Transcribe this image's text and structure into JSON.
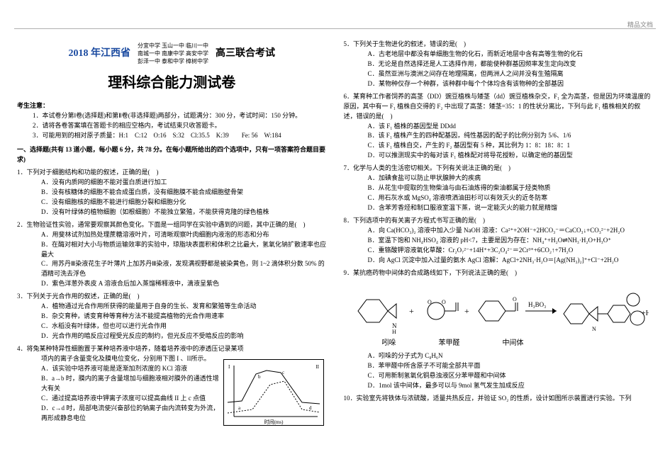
{
  "watermark": "精品文档",
  "header": {
    "year": "2018 年江西省",
    "schools_line1": "分宜中学  玉山一中  临川一中",
    "schools_line2": "南城一中  南康中学  高安中学",
    "schools_line3": "彭泽一中  泰和中学  樟树中学",
    "tail": "高三联合考试",
    "big_title": "理科综合能力测试卷"
  },
  "notice_title": "考生注意：",
  "notice_1": "1．本试卷分第Ⅰ卷(选择题)和第Ⅱ卷(非选择题)两部分，试题满分：300 分，考试时间：150 分钟。",
  "notice_2": "2．请将各卷答案填在答题卡的相应空格内，考试结束只收答题卡。",
  "notice_3": "3．可能用到的相对原子质量：H:1　C:12　O:16　S:32　Cl:35.5　K:39　　Fe: 56　W:184",
  "part1": "一、选择题(共有 13 道小题，每小题 6 分，共 78 分。在每小题所给出的四个选项中，只有一项答案符合题目要求)",
  "q1": {
    "stem": "1．下列对于细胞结构和功能的叙述，正确的是(　)",
    "a": "A．没有内质网的细胞不能对蛋白质进行加工",
    "b": "B．没有核糖体的细胞不能合成蛋白质，没有细胞膜不能合成细胞壁骨架",
    "c": "C．没有细胞核的细胞不能进行细胞分裂和细胞分化",
    "d": "D．没有叶绿体的植物细胞（如根细胞）不能独立繁殖，不能获得克隆的绿色植株"
  },
  "q2": {
    "stem": "2．生物验证性实验，通常要观察其颜色变化。下面是一组同学在实验中遇到的问题，其中正确的是(　)",
    "a": "A．用斐林试剂加热处理蔗糖溶液叶片，可清晰观察叶肉细胞内液泡的形态和分布",
    "b": "B．在酶对相对大小与物质运输效率的实验中，琼脂块表面积和体积之比最大，氢氧化钠扩散速率也应最大",
    "c": "C．用苏丹Ⅲ染液花生子叶薄片上加苏丹Ⅲ染液，发现满视野都是被染黄色，则 1~2 滴体积分数 50% 的酒精可洗去浮色",
    "d": "D．紫色洋葱外表皮 A 溶液合后加入蒸馏稀释液中，滴液呈紫色"
  },
  "q3": {
    "stem": "3．下列关于光合作用的叙述，正确的是(　)",
    "a": "A．植物通过光合作用所获得的能量用于自身的生长、发育和繁殖等生命活动",
    "b": "B．杂交育种，诱变育种等育种方法不能提高植物的光合作用速率",
    "c": "C．水稻没有叶绿体，但也可以进行光合作用",
    "d": "D．光合作用的暗反应过程受光反应的制约，但光反应不受暗反应的影响"
  },
  "q4": {
    "stem": "4．将兔某种特异性细胞置于某种培养液中培养，随着培养液中的渗透压记录某项",
    "body": "项内的离子含量变化及膜电位变化，分别用下图 I 、II所示。",
    "a": "A．该实验中培养液可能是逐渐加剂浓度的 KCl 溶液",
    "b": "B．a→b 时，膜内的离子含量增加与细胞液相对膜外的通透性增大有关",
    "c": "C．通过提高培养液中钾离子浓度可以提高曲线 II 上 c 点值",
    "d": "D．c→d 时，局部电流使兴奋部位的钠离子由内流转变为外流，再形成静息电位",
    "chart": {
      "border_color": "#000000",
      "curve_color": "#000000",
      "xlabel": "时间(ms)",
      "ylabel1": "膜电位(mV)",
      "ylabel2": "离子含量",
      "ymin": -2,
      "ymax": 2,
      "labels": [
        "a",
        "b",
        "c",
        "d"
      ],
      "curve1": [
        [
          5,
          60
        ],
        [
          25,
          58
        ],
        [
          45,
          20
        ],
        [
          60,
          15
        ],
        [
          80,
          18
        ],
        [
          110,
          60
        ],
        [
          135,
          62
        ]
      ],
      "curve2": [
        [
          5,
          75
        ],
        [
          40,
          70
        ],
        [
          65,
          35
        ],
        [
          85,
          30
        ],
        [
          110,
          70
        ],
        [
          135,
          74
        ]
      ]
    }
  },
  "q5": {
    "stem": "5．下列关于生物进化的叙述，错误的是(　)",
    "a": "A．古老地层中都没有单细胞生物的化石，而新近地层中含有高等生物的化石",
    "b": "B．无论是自然选择还是人工选择作用，都能使种群基因频率发生定向改变",
    "c": "C．虽然亚洲与澳洲之间存在地理隔离，但两洲人之间并没有生殖隔离",
    "d": "D．某物种仅存一个种群，该种群中每个个体均含有该物种的全部基因"
  },
  "q6": {
    "stem": "6．某育种工作者饲养的高茎（DD）豌豆植株与矮茎（dd）豌豆植株杂交，F₁ 全为高茎，但是因为环境温度的原因，其中有一 F₁ 植株自交得的 F₂ 中出现了高茎：矮茎=35：1 的性状分离比，下列与此 F₁ 植株相关的叙述，错误的是(　)",
    "a": "A．该 F₁ 植株的基因型是 DDdd",
    "b": "B．该 F₁ 植株产生的四种配基因，纯性基因的配子的比例分别为 5/6、1/6",
    "c": "C．该 F₁ 植株自交，产生的 F₂ 基因型有 5 种，其比例为 1：8：18：8：1",
    "d": "D．可以推测现实中的每对该 F₁ 植株配对将导花授粉，以确定他的基因型"
  },
  "q7": {
    "stem": "7．化学与人类的生活密切相关。下列有关说法正确的是(　)",
    "a": "A．加碘食盐可以防止甲状腺肿大的疾病",
    "b": "B．从花生中提取的生物柴油与由石油炼得的柴油都属于烃类物质",
    "c": "C．用石灰水或 MgSO₄ 溶液喷洒油田杉可以有效灭火的近冬防寒",
    "d": "D．含苯芳香烃和制口服液室温下蒸，说一定能灭火的能力就是精馏"
  },
  "q8": {
    "stem": "8．下列选项中的有关离子方程式书写正确的是(　)",
    "a": "A．向 Ca(HCO₃)₂ 溶液中加入少量 NaOH 溶液：Ca²⁺+2OH⁻+2HCO₃⁻＝CaCO₃↓+CO₃²⁻+2H₂O",
    "b": "B．室温下饱和 NH₄HSO₄ 溶液的 pH<7，主要是因为存在：NH₄⁺+H₂O⇌NH₃·H₂O+H₃O⁺",
    "c": "C．重铬酸钾溶液氧化草酸：Cr₂O₇²⁻+14H⁺+3C₂O₄²⁻＝2Cr³⁺+6CO₂↑+7H₂O",
    "d": "D．向 AgCl 沉淀中加入过量的氨水 AgCl 溶解：AgCl+2NH₃·H₂O＝[Ag(NH₃)₂]⁺+Cl⁻+2H₂O"
  },
  "q9": {
    "stem": "9．某抗癌药物中间体的合成路线如下，下列说法正确的是(　)",
    "labels": {
      "l1": "吲哚",
      "l2": "苯甲醛",
      "l3": "中间体",
      "arrow": "H₃BO₃",
      "plus": "+H₂O"
    },
    "a": "A．吲哚的分子式为 C₈H₆N",
    "b": "B．苯甲醛中所含原子不可能全部共平面",
    "c": "C．可用新制氢氧化铜悬浊液区分苯甲醛和中间体",
    "d": "D．1mol 该中间体，最多可以与 9mol 氢气发生加成反应"
  },
  "q10": "10．实验室先将铁体与浓硫酸，适量共热反应，并验证 SO₂ 的性质，设计如图所示装置进行实验。下列"
}
